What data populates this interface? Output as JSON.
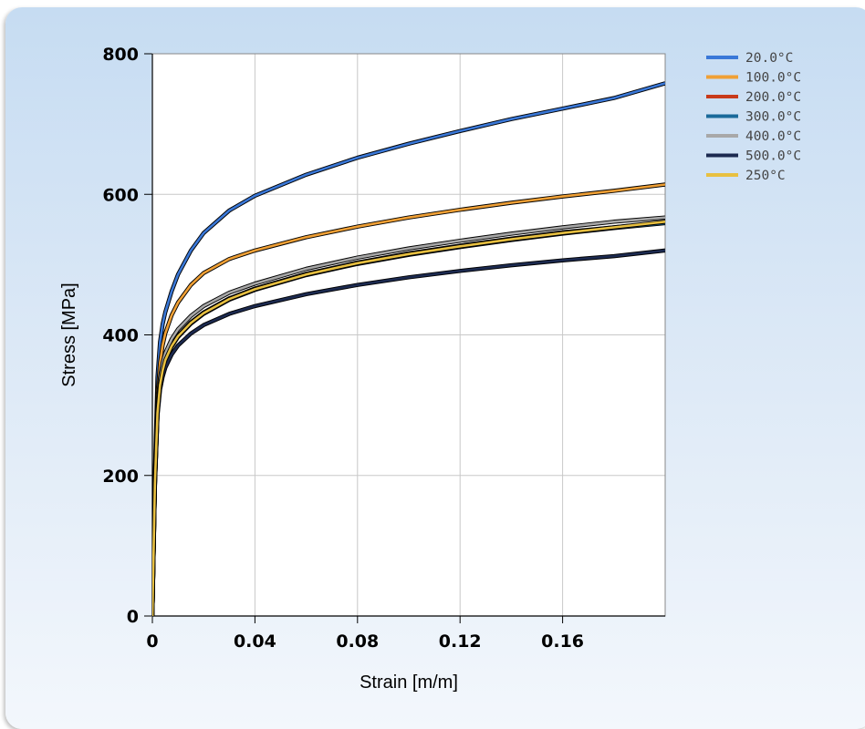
{
  "chart_data": {
    "type": "line",
    "title": "",
    "xlabel": "Strain [m/m]",
    "ylabel": "Stress [MPa]",
    "xlim": [
      0,
      0.2
    ],
    "ylim": [
      0,
      800
    ],
    "x_ticks": [
      "0",
      "0.04",
      "0.08",
      "0.12",
      "0.16"
    ],
    "y_ticks": [
      "0",
      "200",
      "400",
      "600",
      "800"
    ],
    "grid": true,
    "legend_position": "top-right",
    "x": [
      0,
      0.001,
      0.002,
      0.003,
      0.004,
      0.005,
      0.0075,
      0.01,
      0.015,
      0.02,
      0.03,
      0.04,
      0.06,
      0.08,
      0.1,
      0.12,
      0.14,
      0.16,
      0.18,
      0.2
    ],
    "series": [
      {
        "name": "20.0°C",
        "color": "#3a78d8",
        "values": [
          0,
          205,
          340,
          390,
          415,
          432,
          462,
          486,
          520,
          545,
          577,
          598,
          628,
          652,
          672,
          690,
          707,
          722,
          737,
          758
        ]
      },
      {
        "name": "100.0°C",
        "color": "#f0a035",
        "values": [
          0,
          200,
          315,
          360,
          385,
          402,
          428,
          446,
          471,
          488,
          508,
          520,
          539,
          554,
          567,
          578,
          588,
          597,
          605,
          614
        ]
      },
      {
        "name": "200.0°C",
        "color": "#c83a1a",
        "values": [
          0,
          190,
          290,
          330,
          350,
          365,
          385,
          399,
          418,
          432,
          452,
          466,
          487,
          503,
          516,
          527,
          537,
          546,
          553,
          560
        ]
      },
      {
        "name": "300.0°C",
        "color": "#1a6a9a",
        "values": [
          0,
          188,
          288,
          328,
          348,
          363,
          383,
          397,
          416,
          430,
          450,
          464,
          485,
          501,
          514,
          525,
          535,
          544,
          552,
          559
        ]
      },
      {
        "name": "400.0°C",
        "color": "#a8a8a8",
        "values": [
          0,
          195,
          300,
          340,
          360,
          374,
          394,
          408,
          427,
          441,
          460,
          473,
          494,
          510,
          523,
          534,
          544,
          553,
          561,
          567
        ]
      },
      {
        "name": "500.0°C",
        "color": "#1c2a50",
        "values": [
          0,
          185,
          285,
          322,
          340,
          353,
          372,
          385,
          402,
          414,
          430,
          441,
          458,
          471,
          482,
          491,
          499,
          506,
          512,
          520
        ]
      },
      {
        "name": "250°C",
        "color": "#e8c040",
        "values": [
          0,
          189,
          289,
          329,
          349,
          364,
          384,
          398,
          417,
          431,
          451,
          465,
          486,
          502,
          515,
          526,
          536,
          545,
          553,
          561
        ]
      }
    ]
  }
}
